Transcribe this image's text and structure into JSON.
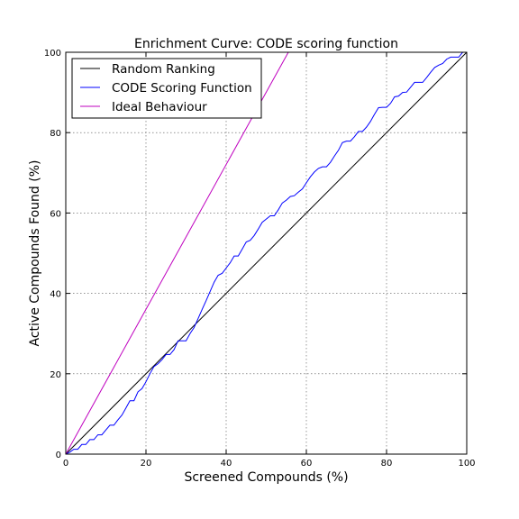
{
  "chart_data": {
    "type": "line",
    "title": "Enrichment Curve: CODE scoring function",
    "xlabel": "Screened Compounds (%)",
    "ylabel": "Active Compounds Found (%)",
    "xlim": [
      0,
      100
    ],
    "ylim": [
      0,
      100
    ],
    "x_ticks": [
      "0",
      "20",
      "40",
      "60",
      "80",
      "100"
    ],
    "y_ticks": [
      "0",
      "20",
      "40",
      "60",
      "80",
      "100"
    ],
    "grid": true,
    "legend_position": "top-left",
    "series": [
      {
        "name": "Random Ranking",
        "color": "#000000",
        "points": [
          [
            0,
            0
          ],
          [
            100,
            100
          ]
        ]
      },
      {
        "name": "CODE Scoring Function",
        "color": "#0000ff",
        "points": [
          [
            0,
            0
          ],
          [
            1,
            0.5
          ],
          [
            2,
            1.2
          ],
          [
            3,
            1.2
          ],
          [
            4,
            2.4
          ],
          [
            5,
            2.4
          ],
          [
            6,
            3.6
          ],
          [
            7,
            3.6
          ],
          [
            8,
            4.8
          ],
          [
            9,
            4.8
          ],
          [
            10,
            6
          ],
          [
            11,
            7.2
          ],
          [
            12,
            7.2
          ],
          [
            13,
            8.5
          ],
          [
            14,
            9.7
          ],
          [
            15,
            11.5
          ],
          [
            16,
            13.3
          ],
          [
            17,
            13.3
          ],
          [
            18,
            15.5
          ],
          [
            19,
            16.3
          ],
          [
            20,
            18
          ],
          [
            21,
            20
          ],
          [
            22,
            21.8
          ],
          [
            23,
            22.5
          ],
          [
            24,
            23.5
          ],
          [
            25,
            24.8
          ],
          [
            26,
            24.8
          ],
          [
            27,
            26
          ],
          [
            28,
            28.2
          ],
          [
            30,
            28.2
          ],
          [
            31,
            30
          ],
          [
            32,
            31.5
          ],
          [
            33,
            33.7
          ],
          [
            34,
            36
          ],
          [
            35,
            38.2
          ],
          [
            36,
            40.5
          ],
          [
            37,
            42.8
          ],
          [
            38,
            44.5
          ],
          [
            39,
            45
          ],
          [
            40,
            46.3
          ],
          [
            41,
            47.6
          ],
          [
            42,
            49.3
          ],
          [
            43,
            49.3
          ],
          [
            44,
            51
          ],
          [
            45,
            52.8
          ],
          [
            46,
            53.2
          ],
          [
            47,
            54.4
          ],
          [
            48,
            56
          ],
          [
            49,
            57.7
          ],
          [
            50,
            58.5
          ],
          [
            51,
            59.3
          ],
          [
            52,
            59.3
          ],
          [
            53,
            60.8
          ],
          [
            54,
            62.5
          ],
          [
            55,
            63.2
          ],
          [
            56,
            64.1
          ],
          [
            57,
            64.3
          ],
          [
            58,
            65.2
          ],
          [
            59,
            66
          ],
          [
            60,
            67.5
          ],
          [
            61,
            69
          ],
          [
            62,
            70.2
          ],
          [
            63,
            71.1
          ],
          [
            64,
            71.5
          ],
          [
            65,
            71.5
          ],
          [
            66,
            72.6
          ],
          [
            67,
            74.2
          ],
          [
            68,
            75.6
          ],
          [
            69,
            77.5
          ],
          [
            70,
            77.9
          ],
          [
            71,
            77.9
          ],
          [
            72,
            79
          ],
          [
            73,
            80.3
          ],
          [
            74,
            80.3
          ],
          [
            75,
            81.4
          ],
          [
            76,
            82.8
          ],
          [
            77,
            84.6
          ],
          [
            78,
            86.2
          ],
          [
            79,
            86.3
          ],
          [
            80,
            86.3
          ],
          [
            81,
            87.3
          ],
          [
            82,
            88.9
          ],
          [
            83,
            89.1
          ],
          [
            84,
            90
          ],
          [
            85,
            90.1
          ],
          [
            86,
            91.3
          ],
          [
            87,
            92.5
          ],
          [
            88,
            92.5
          ],
          [
            89,
            92.5
          ],
          [
            90,
            93.7
          ],
          [
            91,
            95
          ],
          [
            92,
            96.2
          ],
          [
            93,
            96.8
          ],
          [
            94,
            97.2
          ],
          [
            95,
            98.3
          ],
          [
            96,
            98.8
          ],
          [
            97,
            98.8
          ],
          [
            98,
            98.8
          ],
          [
            99,
            100
          ],
          [
            100,
            100
          ]
        ]
      },
      {
        "name": "Ideal Behaviour",
        "color": "#bf00bf",
        "points": [
          [
            0,
            0
          ],
          [
            55.5,
            100
          ]
        ]
      }
    ]
  }
}
